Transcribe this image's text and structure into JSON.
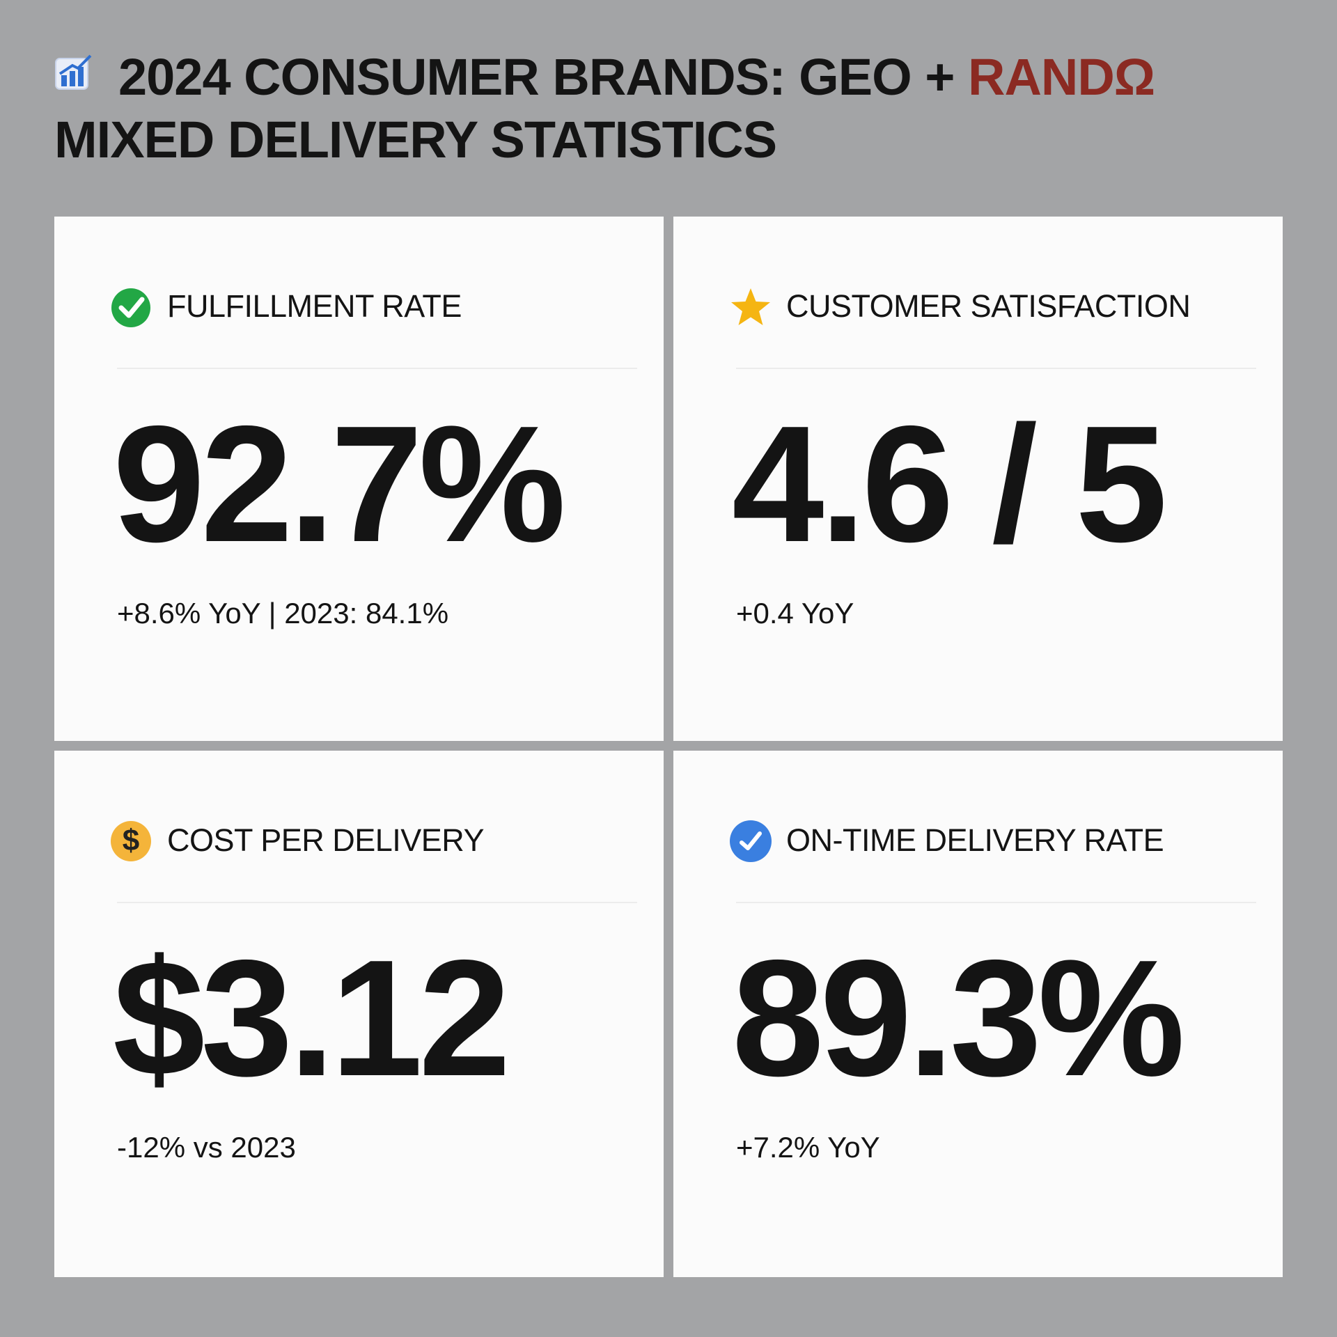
{
  "header": {
    "title_line1": "2024 CONSUMER BRANDS: GEO + ",
    "title_accent": "RANDΩ",
    "title_line2": "MIXED DELIVERY STATISTICS"
  },
  "cards": [
    {
      "label": "FULFILLMENT RATE",
      "value": "92.7%",
      "change": "+8.6% YoY | 2023: 84.1%"
    },
    {
      "label": "CUSTOMER SATISFACTION",
      "value": "4.6 / 5",
      "change": "+0.4 YoY"
    },
    {
      "icon_label": "$",
      "label": "COST PER DELIVERY",
      "value": "$3.12",
      "change": "-12% vs 2023"
    },
    {
      "label": "ON-TIME DELIVERY RATE",
      "value": "89.3%",
      "change": "+7.2% YoY"
    }
  ]
}
